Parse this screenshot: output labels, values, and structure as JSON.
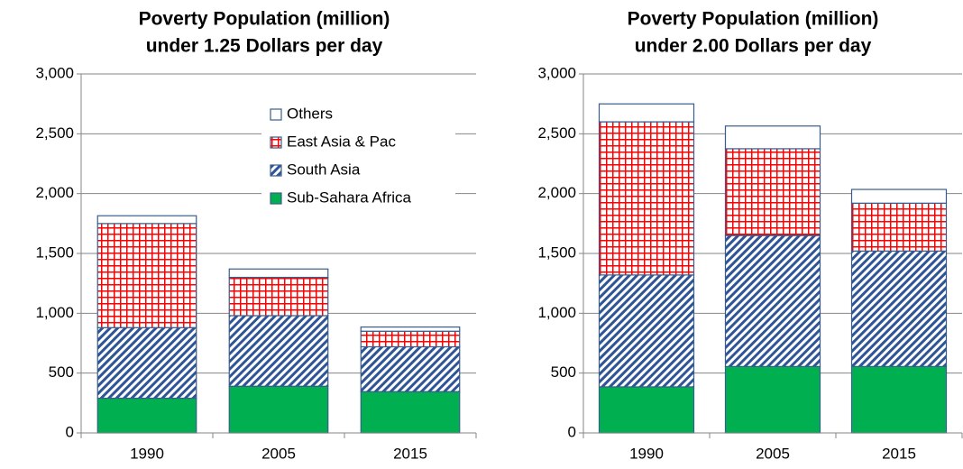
{
  "chart_data": [
    {
      "type": "stacked_bar",
      "title": "Poverty Population (million)",
      "subtitle": "under 1.25 Dollars per day",
      "categories": [
        "1990",
        "2005",
        "2015"
      ],
      "series": [
        {
          "name": "Sub-Sahara Africa",
          "color": "#00b050",
          "pattern": "solid",
          "values": [
            290,
            390,
            345
          ]
        },
        {
          "name": "South Asia",
          "color": "#2f5597",
          "pattern": "diagonal",
          "values": [
            590,
            590,
            375
          ]
        },
        {
          "name": "East Asia & Pac",
          "color": "#ff0000",
          "pattern": "crosshatch",
          "values": [
            870,
            320,
            130
          ]
        },
        {
          "name": "Others",
          "color": "#ffffff",
          "pattern": "solid",
          "values": [
            65,
            70,
            35
          ]
        }
      ],
      "ylim": [
        0,
        3000
      ],
      "yticks": [
        0,
        500,
        {
          "value": 1000,
          "label": "1,000"
        },
        {
          "value": 1500,
          "label": "1,500"
        },
        {
          "value": 2000,
          "label": "2,000"
        },
        {
          "value": 2500,
          "label": "2,500"
        },
        {
          "value": 3000,
          "label": "3,000"
        }
      ],
      "grid": true,
      "legend": "upper right"
    },
    {
      "type": "stacked_bar",
      "title": "Poverty Population (million)",
      "subtitle": "under 2.00 Dollars per day",
      "categories": [
        "1990",
        "2005",
        "2015"
      ],
      "series": [
        {
          "color": "#00b050",
          "pattern": "solid",
          "values": [
            385,
            555,
            555
          ]
        },
        {
          "color": "#2f5597",
          "pattern": "diagonal",
          "values": [
            935,
            1095,
            965
          ]
        },
        {
          "color": "#ff0000",
          "pattern": "crosshatch",
          "values": [
            1280,
            725,
            400
          ]
        },
        {
          "color": "#ffffff",
          "pattern": "solid",
          "values": [
            150,
            190,
            115
          ]
        }
      ],
      "ylim": [
        0,
        3000
      ],
      "yticks": [
        0,
        500,
        {
          "value": 1000,
          "label": "1,000"
        },
        {
          "value": 1500,
          "label": "1,500"
        },
        {
          "value": 2000,
          "label": "2,000"
        },
        {
          "value": 2500,
          "label": "2,500"
        },
        {
          "value": 3000,
          "label": "3,000"
        }
      ],
      "grid": true
    }
  ]
}
